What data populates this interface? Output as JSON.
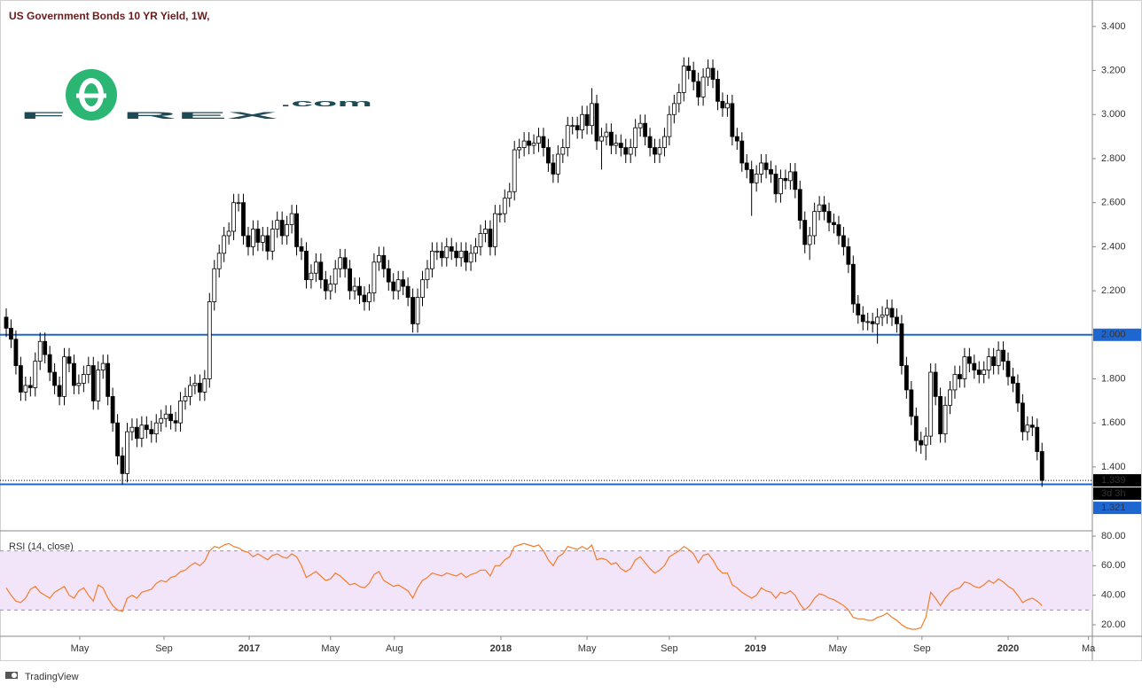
{
  "header": {
    "title": "US Government Bonds 10 YR Yield, 1W,",
    "logo_left": "F",
    "logo_right": "REX",
    "logo_suffix": ".com"
  },
  "footer": {
    "brand": "TradingView"
  },
  "chart_data": [
    {
      "type": "candlestick",
      "xlim": [
        -0.37,
        224.4
      ],
      "xticks": [
        {
          "value": 15.2,
          "label": "May"
        },
        {
          "value": 32.6,
          "label": "Sep"
        },
        {
          "value": 50.2,
          "label": "2017"
        },
        {
          "value": 67.0,
          "label": "May"
        },
        {
          "value": 80.2,
          "label": "Aug"
        },
        {
          "value": 102.2,
          "label": "2018"
        },
        {
          "value": 120.0,
          "label": "May"
        },
        {
          "value": 137.0,
          "label": "Sep"
        },
        {
          "value": 154.8,
          "label": "2019"
        },
        {
          "value": 171.8,
          "label": "May"
        },
        {
          "value": 189.2,
          "label": "Sep"
        },
        {
          "value": 207.0,
          "label": "2020"
        },
        {
          "value": 223.6,
          "label": "Ma"
        }
      ],
      "ylim": [
        1.114,
        3.5
      ],
      "yticks": [
        {
          "value": 1.4,
          "label": "1.400"
        },
        {
          "value": 1.6,
          "label": "1.600"
        },
        {
          "value": 1.8,
          "label": "1.800"
        },
        {
          "value": 2.0,
          "label": "2.000"
        },
        {
          "value": 2.2,
          "label": "2.200"
        },
        {
          "value": 2.4,
          "label": "2.400"
        },
        {
          "value": 2.6,
          "label": "2.600"
        },
        {
          "value": 2.8,
          "label": "2.800"
        },
        {
          "value": 3.0,
          "label": "3.000"
        },
        {
          "value": 3.2,
          "label": "3.200"
        },
        {
          "value": 3.4,
          "label": "3.400"
        }
      ],
      "grid": false,
      "up_color": "#ffffff",
      "down_color": "#000000",
      "hline_color": "#1e66d0",
      "hlines": [
        {
          "value": 2.0,
          "label": "2.000"
        },
        {
          "value": 1.321,
          "label": "1.321"
        }
      ],
      "last_price_label": "1.339",
      "countdown": "3d 3h",
      "open": [
        2.08,
        2.03,
        1.98,
        1.86,
        1.74,
        1.77,
        1.76,
        1.88,
        1.97,
        1.91,
        1.83,
        1.77,
        1.72,
        1.9,
        1.87,
        1.77,
        1.78,
        1.82,
        1.86,
        1.7,
        1.84,
        1.87,
        1.72,
        1.6,
        1.45,
        1.37,
        1.56,
        1.58,
        1.53,
        1.59,
        1.57,
        1.55,
        1.6,
        1.62,
        1.64,
        1.61,
        1.6,
        1.7,
        1.72,
        1.77,
        1.78,
        1.74,
        1.8,
        2.15,
        2.3,
        2.37,
        2.45,
        2.47,
        2.6,
        2.6,
        2.45,
        2.4,
        2.48,
        2.42,
        2.45,
        2.38,
        2.48,
        2.52,
        2.45,
        2.5,
        2.55,
        2.4,
        2.38,
        2.25,
        2.28,
        2.33,
        2.25,
        2.2,
        2.23,
        2.3,
        2.35,
        2.3,
        2.2,
        2.22,
        2.18,
        2.15,
        2.19,
        2.33,
        2.36,
        2.3,
        2.24,
        2.2,
        2.25,
        2.22,
        2.17,
        2.05,
        2.17,
        2.25,
        2.3,
        2.38,
        2.38,
        2.35,
        2.4,
        2.38,
        2.35,
        2.38,
        2.33,
        2.37,
        2.4,
        2.46,
        2.48,
        2.4,
        2.55,
        2.55,
        2.62,
        2.65,
        2.84,
        2.85,
        2.88,
        2.86,
        2.87,
        2.9,
        2.85,
        2.78,
        2.73,
        2.82,
        2.85,
        2.95,
        2.95,
        2.93,
        3.0,
        2.95,
        3.05,
        2.88,
        2.9,
        2.92,
        2.86,
        2.87,
        2.85,
        2.82,
        2.85,
        2.94,
        2.96,
        2.9,
        2.85,
        2.82,
        2.85,
        2.9,
        3.0,
        3.05,
        3.1,
        3.22,
        3.2,
        3.15,
        3.08,
        3.17,
        3.21,
        3.16,
        3.06,
        3.03,
        3.05,
        2.9,
        2.88,
        2.78,
        2.75,
        2.69,
        2.73,
        2.78,
        2.75,
        2.73,
        2.64,
        2.71,
        2.7,
        2.74,
        2.66,
        2.52,
        2.41,
        2.45,
        2.56,
        2.59,
        2.56,
        2.51,
        2.5,
        2.45,
        2.4,
        2.32,
        2.14,
        2.09,
        2.06,
        2.06,
        2.05,
        2.08,
        2.09,
        2.12,
        2.08,
        2.05,
        1.86,
        1.75,
        1.63,
        1.52,
        1.5,
        1.54,
        1.83,
        1.72,
        1.55,
        1.68,
        1.75,
        1.82,
        1.8,
        1.9,
        1.87,
        1.84,
        1.82,
        1.84,
        1.9,
        1.86,
        1.93,
        1.88,
        1.81,
        1.78,
        1.69,
        1.56,
        1.59,
        1.58,
        1.47
      ],
      "high": [
        2.12,
        2.07,
        2.02,
        1.9,
        1.81,
        1.81,
        1.92,
        2.01,
        2.01,
        1.95,
        1.87,
        1.81,
        1.94,
        1.94,
        1.91,
        1.82,
        1.86,
        1.9,
        1.9,
        1.88,
        1.91,
        1.91,
        1.76,
        1.64,
        1.49,
        1.6,
        1.62,
        1.62,
        1.63,
        1.63,
        1.61,
        1.64,
        1.66,
        1.68,
        1.68,
        1.65,
        1.74,
        1.76,
        1.81,
        1.82,
        1.82,
        1.84,
        2.19,
        2.34,
        2.41,
        2.49,
        2.51,
        2.64,
        2.64,
        2.64,
        2.49,
        2.52,
        2.52,
        2.49,
        2.49,
        2.52,
        2.56,
        2.56,
        2.54,
        2.59,
        2.59,
        2.44,
        2.42,
        2.32,
        2.37,
        2.37,
        2.29,
        2.27,
        2.34,
        2.39,
        2.39,
        2.34,
        2.26,
        2.26,
        2.22,
        2.23,
        2.37,
        2.4,
        2.4,
        2.34,
        2.28,
        2.29,
        2.29,
        2.26,
        2.21,
        2.21,
        2.29,
        2.34,
        2.42,
        2.42,
        2.42,
        2.44,
        2.44,
        2.42,
        2.42,
        2.42,
        2.41,
        2.44,
        2.5,
        2.52,
        2.52,
        2.59,
        2.59,
        2.66,
        2.69,
        2.88,
        2.89,
        2.92,
        2.92,
        2.91,
        2.94,
        2.94,
        2.89,
        2.82,
        2.86,
        2.89,
        2.99,
        2.99,
        2.99,
        3.04,
        3.04,
        3.12,
        3.09,
        2.94,
        2.96,
        2.96,
        2.91,
        2.91,
        2.89,
        2.89,
        2.98,
        3.0,
        3.0,
        2.94,
        2.89,
        2.89,
        2.94,
        3.04,
        3.09,
        3.14,
        3.26,
        3.26,
        3.24,
        3.19,
        3.21,
        3.25,
        3.25,
        3.2,
        3.1,
        3.09,
        3.09,
        2.94,
        2.92,
        2.82,
        2.79,
        2.77,
        2.82,
        2.82,
        2.79,
        2.77,
        2.75,
        2.75,
        2.78,
        2.78,
        2.7,
        2.56,
        2.49,
        2.6,
        2.63,
        2.63,
        2.6,
        2.55,
        2.54,
        2.49,
        2.44,
        2.36,
        2.18,
        2.13,
        2.1,
        2.1,
        2.12,
        2.13,
        2.16,
        2.16,
        2.12,
        2.09,
        1.9,
        1.79,
        1.67,
        1.56,
        1.58,
        1.87,
        1.87,
        1.76,
        1.72,
        1.79,
        1.86,
        1.86,
        1.94,
        1.94,
        1.91,
        1.88,
        1.88,
        1.94,
        1.94,
        1.97,
        1.97,
        1.92,
        1.85,
        1.82,
        1.73,
        1.63,
        1.63,
        1.62,
        1.51
      ],
      "low": [
        1.99,
        1.94,
        1.82,
        1.7,
        1.7,
        1.72,
        1.72,
        1.84,
        1.87,
        1.79,
        1.73,
        1.68,
        1.68,
        1.83,
        1.73,
        1.73,
        1.74,
        1.78,
        1.66,
        1.66,
        1.8,
        1.68,
        1.56,
        1.41,
        1.32,
        1.33,
        1.52,
        1.49,
        1.49,
        1.53,
        1.51,
        1.51,
        1.56,
        1.58,
        1.57,
        1.56,
        1.56,
        1.66,
        1.68,
        1.73,
        1.7,
        1.7,
        1.76,
        2.11,
        2.26,
        2.33,
        2.41,
        2.43,
        2.56,
        2.41,
        2.36,
        2.36,
        2.38,
        2.38,
        2.34,
        2.34,
        2.44,
        2.41,
        2.41,
        2.46,
        2.36,
        2.34,
        2.21,
        2.21,
        2.24,
        2.21,
        2.16,
        2.16,
        2.19,
        2.26,
        2.26,
        2.16,
        2.16,
        2.14,
        2.11,
        2.11,
        2.15,
        2.29,
        2.26,
        2.2,
        2.16,
        2.16,
        2.18,
        2.13,
        2.01,
        2.01,
        2.13,
        2.21,
        2.26,
        2.34,
        2.31,
        2.31,
        2.34,
        2.31,
        2.31,
        2.29,
        2.29,
        2.33,
        2.36,
        2.42,
        2.36,
        2.36,
        2.51,
        2.51,
        2.58,
        2.61,
        2.8,
        2.81,
        2.82,
        2.82,
        2.83,
        2.81,
        2.74,
        2.69,
        2.69,
        2.78,
        2.81,
        2.91,
        2.89,
        2.89,
        2.91,
        2.91,
        2.84,
        2.75,
        2.86,
        2.82,
        2.82,
        2.81,
        2.78,
        2.78,
        2.81,
        2.9,
        2.86,
        2.81,
        2.78,
        2.78,
        2.81,
        2.86,
        2.96,
        3.01,
        3.06,
        3.16,
        3.11,
        3.04,
        3.04,
        3.13,
        3.12,
        3.02,
        2.99,
        2.99,
        2.86,
        2.84,
        2.74,
        2.71,
        2.54,
        2.65,
        2.69,
        2.71,
        2.69,
        2.6,
        2.6,
        2.66,
        2.66,
        2.62,
        2.48,
        2.37,
        2.34,
        2.41,
        2.52,
        2.52,
        2.47,
        2.46,
        2.41,
        2.36,
        2.28,
        2.1,
        2.05,
        2.02,
        2.02,
        2.01,
        1.96,
        2.04,
        2.05,
        2.04,
        2.01,
        1.82,
        1.71,
        1.59,
        1.47,
        1.46,
        1.43,
        1.5,
        1.68,
        1.51,
        1.51,
        1.64,
        1.71,
        1.76,
        1.76,
        1.83,
        1.8,
        1.78,
        1.78,
        1.8,
        1.82,
        1.82,
        1.84,
        1.77,
        1.74,
        1.65,
        1.52,
        1.52,
        1.54,
        1.43,
        1.31
      ],
      "close": [
        2.03,
        1.98,
        1.86,
        1.74,
        1.77,
        1.76,
        1.88,
        1.97,
        1.91,
        1.83,
        1.77,
        1.72,
        1.9,
        1.87,
        1.77,
        1.78,
        1.82,
        1.86,
        1.7,
        1.84,
        1.87,
        1.72,
        1.6,
        1.45,
        1.37,
        1.56,
        1.58,
        1.53,
        1.59,
        1.57,
        1.55,
        1.6,
        1.62,
        1.64,
        1.61,
        1.6,
        1.7,
        1.72,
        1.77,
        1.78,
        1.74,
        1.8,
        2.15,
        2.3,
        2.37,
        2.45,
        2.47,
        2.6,
        2.6,
        2.45,
        2.4,
        2.48,
        2.42,
        2.45,
        2.38,
        2.48,
        2.52,
        2.45,
        2.5,
        2.55,
        2.4,
        2.38,
        2.25,
        2.28,
        2.33,
        2.25,
        2.2,
        2.23,
        2.3,
        2.35,
        2.3,
        2.2,
        2.22,
        2.18,
        2.15,
        2.19,
        2.33,
        2.36,
        2.3,
        2.24,
        2.2,
        2.25,
        2.22,
        2.17,
        2.05,
        2.17,
        2.25,
        2.3,
        2.38,
        2.38,
        2.35,
        2.4,
        2.38,
        2.35,
        2.38,
        2.33,
        2.37,
        2.4,
        2.46,
        2.48,
        2.4,
        2.55,
        2.55,
        2.62,
        2.65,
        2.84,
        2.85,
        2.88,
        2.86,
        2.87,
        2.9,
        2.85,
        2.78,
        2.73,
        2.82,
        2.85,
        2.95,
        2.95,
        2.93,
        3.0,
        2.95,
        3.05,
        2.88,
        2.9,
        2.92,
        2.86,
        2.87,
        2.85,
        2.82,
        2.85,
        2.94,
        2.96,
        2.9,
        2.85,
        2.82,
        2.85,
        2.9,
        3.0,
        3.05,
        3.1,
        3.22,
        3.2,
        3.15,
        3.08,
        3.17,
        3.21,
        3.16,
        3.06,
        3.03,
        3.05,
        2.9,
        2.88,
        2.78,
        2.75,
        2.69,
        2.73,
        2.78,
        2.75,
        2.73,
        2.64,
        2.71,
        2.7,
        2.74,
        2.66,
        2.52,
        2.41,
        2.45,
        2.56,
        2.59,
        2.56,
        2.51,
        2.5,
        2.45,
        2.4,
        2.32,
        2.14,
        2.09,
        2.06,
        2.06,
        2.05,
        2.08,
        2.09,
        2.12,
        2.08,
        2.05,
        1.86,
        1.75,
        1.63,
        1.52,
        1.5,
        1.54,
        1.83,
        1.72,
        1.55,
        1.68,
        1.75,
        1.82,
        1.8,
        1.9,
        1.87,
        1.84,
        1.82,
        1.84,
        1.9,
        1.86,
        1.93,
        1.88,
        1.81,
        1.78,
        1.69,
        1.56,
        1.59,
        1.58,
        1.47,
        1.339
      ]
    },
    {
      "type": "line",
      "title": "RSI (14, close)",
      "color": "#f57c2c",
      "ylim": [
        12.2,
        83
      ],
      "yticks": [
        {
          "value": 20,
          "label": "20.00"
        },
        {
          "value": 40,
          "label": "40.00"
        },
        {
          "value": 60,
          "label": "60.00"
        },
        {
          "value": 80,
          "label": "80.00"
        }
      ],
      "band": [
        30,
        70
      ],
      "band_color": "#f3e5f9",
      "values": [
        45,
        40,
        36,
        35,
        38,
        44,
        46,
        42,
        40,
        38,
        42,
        44,
        46,
        40,
        38,
        43,
        45,
        40,
        36,
        47,
        45,
        38,
        33,
        30,
        29,
        38,
        40,
        38,
        42,
        43,
        44,
        48,
        50,
        49,
        52,
        53,
        56,
        57,
        60,
        62,
        60,
        63,
        70,
        73,
        72,
        74,
        75,
        73,
        72,
        70,
        69,
        66,
        68,
        66,
        64,
        67,
        68,
        66,
        65,
        68,
        66,
        60,
        52,
        54,
        56,
        53,
        50,
        51,
        55,
        53,
        50,
        47,
        48,
        46,
        45,
        48,
        54,
        56,
        50,
        48,
        46,
        47,
        45,
        43,
        38,
        45,
        50,
        52,
        55,
        54,
        53,
        55,
        54,
        53,
        55,
        52,
        54,
        55,
        57,
        57,
        53,
        60,
        60,
        64,
        66,
        73,
        74,
        75,
        74,
        73,
        74,
        70,
        64,
        60,
        66,
        68,
        73,
        72,
        71,
        73,
        71,
        74,
        64,
        65,
        64,
        61,
        62,
        58,
        56,
        58,
        64,
        66,
        62,
        58,
        55,
        57,
        60,
        66,
        68,
        70,
        73,
        71,
        68,
        62,
        67,
        68,
        64,
        58,
        55,
        55,
        47,
        45,
        42,
        40,
        38,
        40,
        45,
        43,
        42,
        38,
        42,
        41,
        43,
        40,
        34,
        30,
        33,
        38,
        41,
        40,
        38,
        37,
        35,
        33,
        30,
        25,
        24,
        24,
        23,
        23,
        25,
        26,
        28,
        25,
        23,
        20,
        18,
        17,
        17,
        18,
        25,
        42,
        38,
        33,
        38,
        42,
        44,
        45,
        49,
        48,
        46,
        45,
        47,
        50,
        48,
        51,
        49,
        46,
        44,
        40,
        35,
        37,
        38,
        36,
        33
      ]
    }
  ]
}
